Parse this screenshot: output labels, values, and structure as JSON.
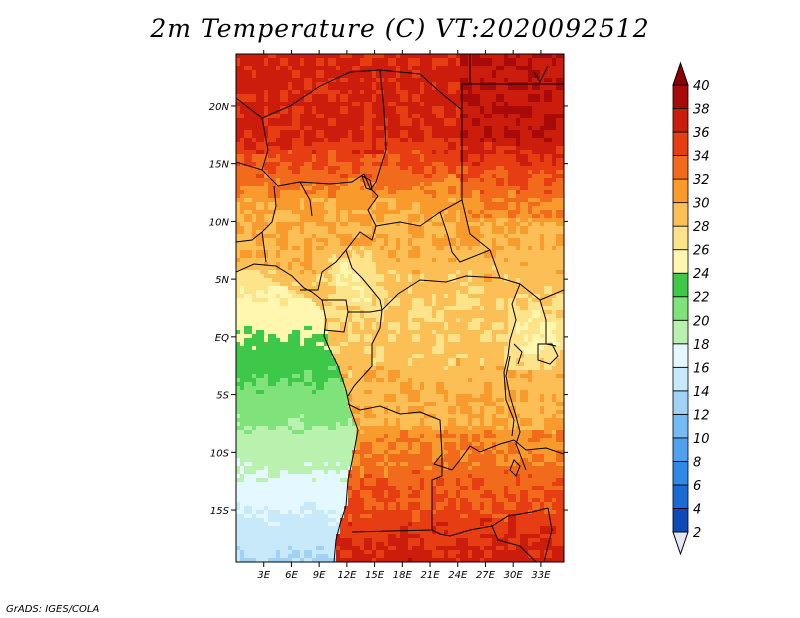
{
  "title": "2m Temperature (C) VT:2020092512",
  "footer": "GrADS: IGES/COLA",
  "map": {
    "lon_range": [
      0,
      35.5
    ],
    "lat_range": [
      -19.5,
      24.5
    ],
    "lon_ticks": [
      {
        "value": 3,
        "label": "3E"
      },
      {
        "value": 6,
        "label": "6E"
      },
      {
        "value": 9,
        "label": "9E"
      },
      {
        "value": 12,
        "label": "12E"
      },
      {
        "value": 15,
        "label": "15E"
      },
      {
        "value": 18,
        "label": "18E"
      },
      {
        "value": 21,
        "label": "21E"
      },
      {
        "value": 24,
        "label": "24E"
      },
      {
        "value": 27,
        "label": "27E"
      },
      {
        "value": 30,
        "label": "30E"
      },
      {
        "value": 33,
        "label": "33E"
      }
    ],
    "lat_ticks": [
      {
        "value": 20,
        "label": "20N"
      },
      {
        "value": 15,
        "label": "15N"
      },
      {
        "value": 10,
        "label": "10N"
      },
      {
        "value": 5,
        "label": "5N"
      },
      {
        "value": 0,
        "label": "EQ"
      },
      {
        "value": -5,
        "label": "5S"
      },
      {
        "value": -10,
        "label": "10S"
      },
      {
        "value": -15,
        "label": "15S"
      }
    ]
  },
  "colorbar": {
    "levels": [
      "2",
      "4",
      "6",
      "8",
      "10",
      "12",
      "14",
      "16",
      "18",
      "20",
      "22",
      "24",
      "26",
      "28",
      "30",
      "32",
      "34",
      "36",
      "38",
      "40"
    ],
    "colors": [
      "#0c1f72",
      "#0e4ab8",
      "#1a6ad6",
      "#2f89e6",
      "#4ea2ee",
      "#74bbf3",
      "#9fd2f6",
      "#c8e9f9",
      "#e4f8ff",
      "#b9f2ae",
      "#7fe27a",
      "#3ec84a",
      "#fff7b0",
      "#fde38a",
      "#fbbf55",
      "#f89a2c",
      "#f26b1c",
      "#e63d12",
      "#cc1d0c",
      "#a80a0a"
    ],
    "under_color": "#e6e6f7",
    "over_color": "#8b0000"
  }
}
